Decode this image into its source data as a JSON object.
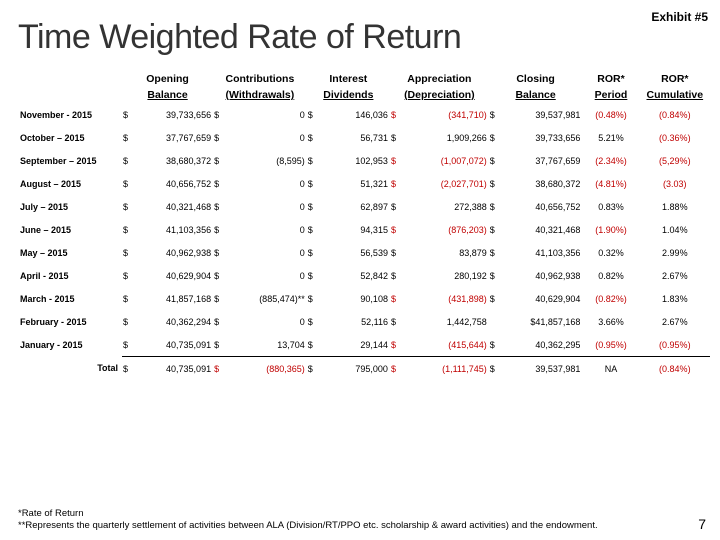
{
  "exhibit": "Exhibit #5",
  "title": "Time Weighted Rate of Return",
  "headers": {
    "h1": [
      "Opening",
      "Contributions",
      "Interest",
      "Appreciation",
      "Closing",
      "ROR*",
      "ROR*"
    ],
    "h2": [
      "Balance",
      "(Withdrawals)",
      "Dividends",
      "(Depreciation)",
      "Balance",
      "Period",
      "Cumulative"
    ]
  },
  "rows": [
    {
      "label": "November - 2015",
      "open": "39,733,656",
      "cont": "0",
      "int": "146,036",
      "app": "(341,710)",
      "appNeg": true,
      "close": "39,537,981",
      "ror": "(0.48%)",
      "rorNeg": true,
      "cum": "(0.84%)",
      "cumNeg": true
    },
    {
      "label": "October – 2015",
      "open": "37,767,659",
      "cont": "0",
      "int": "56,731",
      "app": "1,909,266",
      "appNeg": false,
      "close": "39,733,656",
      "ror": "5.21%",
      "rorNeg": false,
      "cum": "(0.36%)",
      "cumNeg": true
    },
    {
      "label": "September – 2015",
      "open": "38,680,372",
      "cont": "(8,595)",
      "int": "102,953",
      "app": "(1,007,072)",
      "appNeg": true,
      "close": "37,767,659",
      "ror": "(2.34%)",
      "rorNeg": true,
      "cum": "(5,29%)",
      "cumNeg": true
    },
    {
      "label": "August – 2015",
      "open": "40,656,752",
      "cont": "0",
      "int": "51,321",
      "app": "(2,027,701)",
      "appNeg": true,
      "close": "38,680,372",
      "ror": "(4.81%)",
      "rorNeg": true,
      "cum": "(3.03)",
      "cumNeg": true
    },
    {
      "label": "July – 2015",
      "open": "40,321,468",
      "cont": "0",
      "int": "62,897",
      "app": "272,388",
      "appNeg": false,
      "close": "40,656,752",
      "ror": "0.83%",
      "rorNeg": false,
      "cum": "1.88%",
      "cumNeg": false
    },
    {
      "label": "June – 2015",
      "open": "41,103,356",
      "cont": "0",
      "int": "94,315",
      "app": "(876,203)",
      "appNeg": true,
      "close": "40,321,468",
      "ror": "(1.90%)",
      "rorNeg": true,
      "cum": "1.04%",
      "cumNeg": false
    },
    {
      "label": "May – 2015",
      "open": "40,962,938",
      "cont": "0",
      "int": "56,539",
      "app": "83,879",
      "appNeg": false,
      "close": "41,103,356",
      "ror": "0.32%",
      "rorNeg": false,
      "cum": "2.99%",
      "cumNeg": false
    },
    {
      "label": "April - 2015",
      "open": "40,629,904",
      "cont": "0",
      "int": "52,842",
      "app": "280,192",
      "appNeg": false,
      "close": "40,962,938",
      "ror": "0.82%",
      "rorNeg": false,
      "cum": "2.67%",
      "cumNeg": false
    },
    {
      "label": "March - 2015",
      "open": "41,857,168",
      "cont": "(885,474)**",
      "int": "90,108",
      "app": "(431,898)",
      "appNeg": true,
      "close": "40,629,904",
      "ror": "(0.82%)",
      "rorNeg": true,
      "cum": "1.83%",
      "cumNeg": false
    },
    {
      "label": "February - 2015",
      "open": "40,362,294",
      "cont": "0",
      "int": "52,116",
      "app": "1,442,758",
      "appNeg": false,
      "close": "$41,857,168",
      "ror": "3.66%",
      "rorNeg": false,
      "cum": "2.67%",
      "cumNeg": false,
      "noCloseDollar": true
    },
    {
      "label": "January - 2015",
      "open": "40,735,091",
      "cont": "13,704",
      "int": "29,144",
      "app": "(415,644)",
      "appNeg": true,
      "close": "40,362,295",
      "ror": "(0.95%)",
      "rorNeg": true,
      "cum": "(0.95%)",
      "cumNeg": true
    }
  ],
  "total": {
    "label": "Total",
    "open": "40,735,091",
    "cont": "(880,365)",
    "int": "795,000",
    "app": "(1,111,745)",
    "close": "39,537,981",
    "ror": "NA",
    "cum": "(0.84%)"
  },
  "footnote1": "*Rate of Return",
  "footnote2": "**Represents the quarterly settlement of activities between ALA (Division/RT/PPO etc. scholarship & award activities) and the endowment.",
  "page": "7"
}
